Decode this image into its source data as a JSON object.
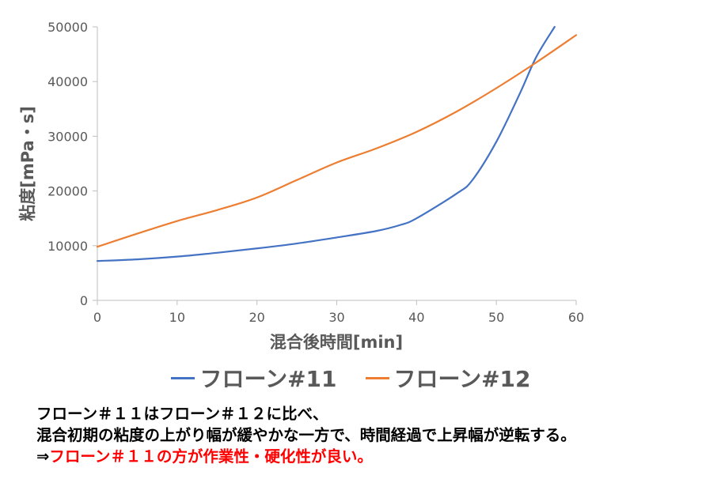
{
  "chart_data": {
    "type": "line",
    "title": "",
    "xlabel": "混合後時間[min]",
    "ylabel": "粘度[mPa・s]",
    "xlim": [
      0,
      60
    ],
    "ylim": [
      0,
      50000
    ],
    "xticks": [
      0,
      10,
      20,
      30,
      40,
      50,
      60
    ],
    "yticks": [
      0,
      10000,
      20000,
      30000,
      40000,
      50000
    ],
    "grid": false,
    "legend_position": "bottom",
    "series": [
      {
        "name": "フローン#11",
        "color": "#4472C4",
        "x": [
          0,
          5,
          10,
          15,
          20,
          25,
          30,
          35,
          38,
          40,
          45,
          47,
          50,
          53,
          55,
          57.3
        ],
        "y": [
          7200,
          7500,
          8000,
          8700,
          9500,
          10400,
          11500,
          12700,
          13800,
          15000,
          19500,
          22000,
          29000,
          38000,
          44500,
          50000
        ]
      },
      {
        "name": "フローン#12",
        "color": "#ED7D31",
        "x": [
          0,
          5,
          10,
          15,
          20,
          25,
          30,
          35,
          40,
          45,
          50,
          55,
          60
        ],
        "y": [
          9800,
          12200,
          14500,
          16500,
          18800,
          22000,
          25200,
          27800,
          30800,
          34500,
          38800,
          43500,
          48500
        ]
      }
    ]
  },
  "legend": {
    "items": [
      {
        "label": "フローン#11",
        "color": "#4472C4"
      },
      {
        "label": "フローン#12",
        "color": "#ED7D31"
      }
    ]
  },
  "note": {
    "line1": "フローン＃１１はフローン＃１２に比べ、",
    "line2": "混合初期の粘度の上がり幅が緩やかな一方で、時間経過で上昇幅が逆転する。",
    "line3_arrow": "⇒",
    "line3_text": "フローン＃１１の方が作業性・硬化性が良い。"
  }
}
